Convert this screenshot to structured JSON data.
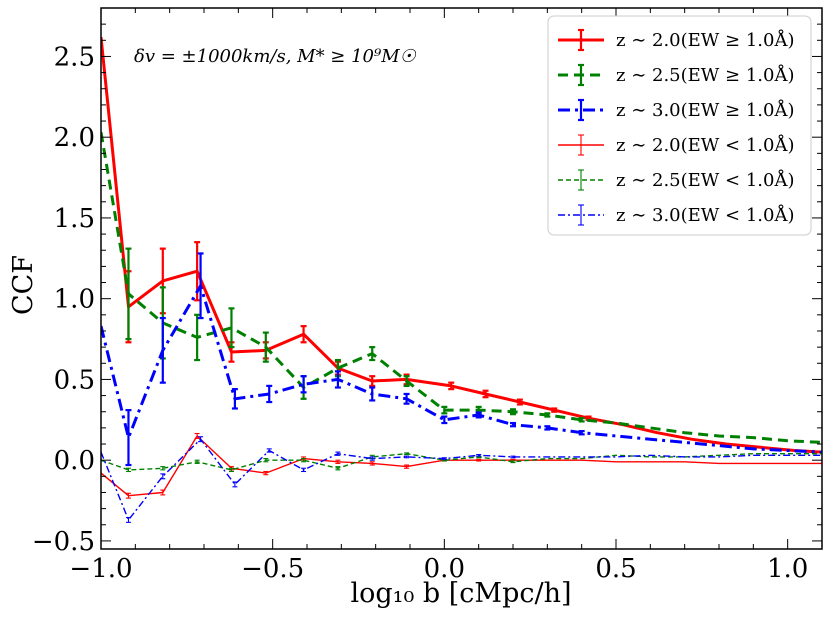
{
  "chart_data": {
    "type": "line",
    "title": "",
    "annotation": "δv = ±1000km/s, M* ≥ 10⁹M☉",
    "xlabel": "log₁₀ b [cMpc/h]",
    "ylabel": "CCF",
    "xlim": [
      -1.0,
      1.1
    ],
    "ylim": [
      -0.55,
      2.8
    ],
    "xticks": [
      -1.0,
      -0.5,
      0.0,
      0.5,
      1.0
    ],
    "xtick_labels": [
      "−1.0",
      "−0.5",
      "0.0",
      "0.5",
      "1.0"
    ],
    "yticks": [
      -0.5,
      0.0,
      0.5,
      1.0,
      1.5,
      2.0,
      2.5
    ],
    "ytick_labels": [
      "−0.5",
      "0.0",
      "0.5",
      "1.0",
      "1.5",
      "2.0",
      "2.5"
    ],
    "grid": false,
    "legend_position": "top-right",
    "series": [
      {
        "name": "z ∼ 2.0(EW ≥ 1.0Å)",
        "color": "#ff0000",
        "style": "solid",
        "weight": "thick",
        "x": [
          -1.0,
          -0.92,
          -0.82,
          -0.72,
          -0.62,
          -0.52,
          -0.41,
          -0.31,
          -0.21,
          -0.11,
          0.02,
          0.12,
          0.22,
          0.32,
          0.42,
          0.52,
          0.62,
          0.72,
          0.82,
          0.92,
          1.02,
          1.1
        ],
        "y": [
          2.62,
          0.95,
          1.11,
          1.17,
          0.67,
          0.68,
          0.78,
          0.57,
          0.49,
          0.5,
          0.46,
          0.41,
          0.36,
          0.31,
          0.26,
          0.22,
          0.17,
          0.13,
          0.1,
          0.08,
          0.06,
          0.05
        ],
        "err": [
          0,
          0.22,
          0.2,
          0.18,
          0.06,
          0.05,
          0.05,
          0.04,
          0.03,
          0.03,
          0.02,
          0.02,
          0.015,
          0.01,
          0.01,
          0,
          0,
          0,
          0,
          0,
          0,
          0
        ]
      },
      {
        "name": "z ∼ 2.5(EW ≥ 1.0Å)",
        "color": "#008000",
        "style": "dashed",
        "weight": "thick",
        "x": [
          -1.0,
          -0.92,
          -0.82,
          -0.72,
          -0.62,
          -0.52,
          -0.41,
          -0.31,
          -0.21,
          -0.11,
          0.0,
          0.1,
          0.2,
          0.3,
          0.4,
          0.5,
          0.6,
          0.7,
          0.8,
          0.9,
          1.0,
          1.1
        ],
        "y": [
          2.03,
          1.03,
          0.85,
          0.76,
          0.82,
          0.7,
          0.45,
          0.57,
          0.66,
          0.49,
          0.31,
          0.31,
          0.3,
          0.28,
          0.25,
          0.23,
          0.2,
          0.17,
          0.15,
          0.14,
          0.12,
          0.11
        ],
        "err": [
          0,
          0.28,
          0.22,
          0.14,
          0.12,
          0.09,
          0.07,
          0.05,
          0.04,
          0.03,
          0.02,
          0.02,
          0.015,
          0.01,
          0.01,
          0,
          0,
          0,
          0,
          0,
          0,
          0
        ]
      },
      {
        "name": "z ∼ 3.0(EW ≥ 1.0Å)",
        "color": "#0000ff",
        "style": "dashdot",
        "weight": "thick",
        "x": [
          -1.0,
          -0.92,
          -0.82,
          -0.71,
          -0.61,
          -0.51,
          -0.41,
          -0.31,
          -0.21,
          -0.11,
          0.0,
          0.1,
          0.2,
          0.3,
          0.4,
          0.5,
          0.6,
          0.7,
          0.8,
          0.9,
          1.0,
          1.1
        ],
        "y": [
          0.83,
          0.14,
          0.68,
          1.08,
          0.38,
          0.41,
          0.47,
          0.5,
          0.41,
          0.38,
          0.25,
          0.28,
          0.22,
          0.2,
          0.17,
          0.15,
          0.13,
          0.11,
          0.09,
          0.07,
          0.06,
          0.05
        ],
        "err": [
          0,
          0.17,
          0.2,
          0.2,
          0.06,
          0.05,
          0.05,
          0.05,
          0.04,
          0.03,
          0.02,
          0.015,
          0.01,
          0.01,
          0.01,
          0,
          0,
          0,
          0,
          0,
          0,
          0
        ]
      },
      {
        "name": "z ∼ 2.0(EW < 1.0Å)",
        "color": "#ff0000",
        "style": "solid",
        "weight": "thin",
        "x": [
          -1.0,
          -0.92,
          -0.82,
          -0.72,
          -0.62,
          -0.52,
          -0.41,
          -0.31,
          -0.21,
          -0.11,
          0.0,
          0.1,
          0.2,
          0.3,
          0.4,
          0.5,
          0.6,
          0.7,
          0.8,
          0.9,
          1.0,
          1.1
        ],
        "y": [
          -0.08,
          -0.22,
          -0.2,
          0.15,
          -0.05,
          -0.08,
          0.01,
          -0.01,
          -0.02,
          -0.04,
          0.0,
          0.0,
          0.0,
          0.0,
          0.0,
          -0.01,
          -0.01,
          -0.01,
          -0.02,
          -0.02,
          -0.02,
          -0.02
        ],
        "err": [
          0,
          0.015,
          0.015,
          0.015,
          0.01,
          0.01,
          0.01,
          0.01,
          0.01,
          0.01,
          0.005,
          0.005,
          0.005,
          0,
          0,
          0,
          0,
          0,
          0,
          0,
          0,
          0
        ]
      },
      {
        "name": "z ∼ 2.5(EW < 1.0Å)",
        "color": "#008000",
        "style": "dashed",
        "weight": "thin",
        "x": [
          -1.0,
          -0.92,
          -0.82,
          -0.72,
          -0.62,
          -0.52,
          -0.41,
          -0.31,
          -0.21,
          -0.11,
          0.0,
          0.1,
          0.2,
          0.3,
          0.4,
          0.5,
          0.6,
          0.7,
          0.8,
          0.9,
          1.0,
          1.1
        ],
        "y": [
          0.0,
          -0.06,
          -0.05,
          -0.01,
          -0.06,
          0.0,
          0.0,
          -0.05,
          0.02,
          0.04,
          0.0,
          0.02,
          -0.01,
          0.01,
          0.01,
          0.03,
          0.02,
          0.02,
          0.03,
          0.04,
          0.04,
          0.04
        ],
        "err": [
          0,
          0.01,
          0.01,
          0.01,
          0.01,
          0.01,
          0.01,
          0.01,
          0.01,
          0.005,
          0.005,
          0.005,
          0.005,
          0,
          0,
          0,
          0,
          0,
          0,
          0,
          0,
          0
        ]
      },
      {
        "name": "z ∼ 3.0(EW < 1.0Å)",
        "color": "#0000ff",
        "style": "dashdot",
        "weight": "thin",
        "x": [
          -1.0,
          -0.92,
          -0.82,
          -0.71,
          -0.61,
          -0.51,
          -0.41,
          -0.31,
          -0.21,
          -0.11,
          0.0,
          0.1,
          0.2,
          0.3,
          0.4,
          0.5,
          0.6,
          0.7,
          0.8,
          0.9,
          1.0,
          1.1
        ],
        "y": [
          0.05,
          -0.37,
          -0.1,
          0.13,
          -0.15,
          0.06,
          -0.06,
          0.04,
          0.01,
          0.02,
          0.01,
          0.03,
          0.02,
          0.02,
          0.02,
          0.02,
          0.03,
          0.02,
          0.02,
          0.03,
          0.03,
          0.03
        ],
        "err": [
          0,
          0.015,
          0.015,
          0.015,
          0.015,
          0.01,
          0.01,
          0.01,
          0.01,
          0.005,
          0.005,
          0.005,
          0.005,
          0,
          0,
          0,
          0,
          0,
          0,
          0,
          0,
          0
        ]
      }
    ]
  }
}
